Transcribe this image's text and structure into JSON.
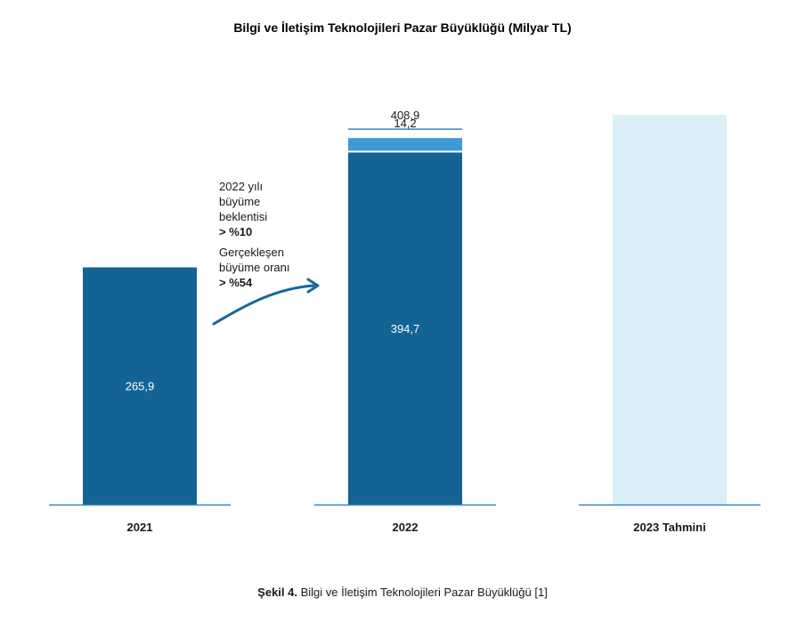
{
  "chart_data": {
    "type": "bar",
    "title": "Bilgi ve İletişim Teknolojileri Pazar Büyüklüğü (Milyar TL)",
    "categories": [
      "2021",
      "2022",
      "2023 Tahmini"
    ],
    "series": [
      {
        "values": [
          265.9,
          394.7,
          null
        ],
        "labels": [
          "265,9",
          "394,7",
          ""
        ]
      },
      {
        "values": [
          0,
          14.2,
          null
        ],
        "labels": [
          "",
          "14,2",
          ""
        ]
      }
    ],
    "forecast_2023_value": 437,
    "totals": {
      "2022": {
        "value": 408.9,
        "label": "408,9"
      }
    },
    "ylim": [
      0,
      437
    ],
    "grid": false,
    "annotation": {
      "expected": [
        "2022 yılı",
        "büyüme",
        "beklentisi",
        "> %10"
      ],
      "actual": [
        "Gerçekleşen",
        "büyüme oranı",
        "> %54"
      ]
    },
    "colors": {
      "base": "#136395",
      "increment": "#3d9ad6",
      "forecast": "#dbeff9",
      "axis": "#3a86be",
      "arrow": "#17689a"
    }
  },
  "caption": {
    "prefix": "Şekil 4.",
    "text": " Bilgi ve İletişim Teknolojileri Pazar Büyüklüğü [1]"
  }
}
